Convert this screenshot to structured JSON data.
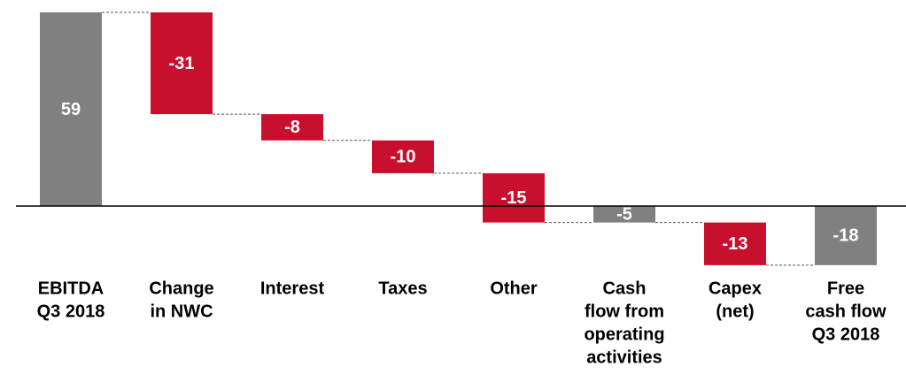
{
  "chart_data": {
    "type": "waterfall",
    "categories": [
      [
        "EBITDA",
        "Q3 2018"
      ],
      [
        "Change",
        "in NWC"
      ],
      [
        "Interest"
      ],
      [
        "Taxes"
      ],
      [
        "Other"
      ],
      [
        "Cash",
        "flow from",
        "operating",
        "activities"
      ],
      [
        "Capex",
        "(net)"
      ],
      [
        "Free",
        "cash flow",
        "Q3 2018"
      ]
    ],
    "values": [
      59,
      -31,
      -8,
      -10,
      -15,
      -5,
      -13,
      -18
    ],
    "is_total": [
      true,
      false,
      false,
      false,
      false,
      true,
      false,
      true
    ],
    "colors": [
      "#808080",
      "#c8102e",
      "#c8102e",
      "#c8102e",
      "#c8102e",
      "#808080",
      "#c8102e",
      "#808080"
    ],
    "ylim": [
      -20,
      60
    ]
  }
}
